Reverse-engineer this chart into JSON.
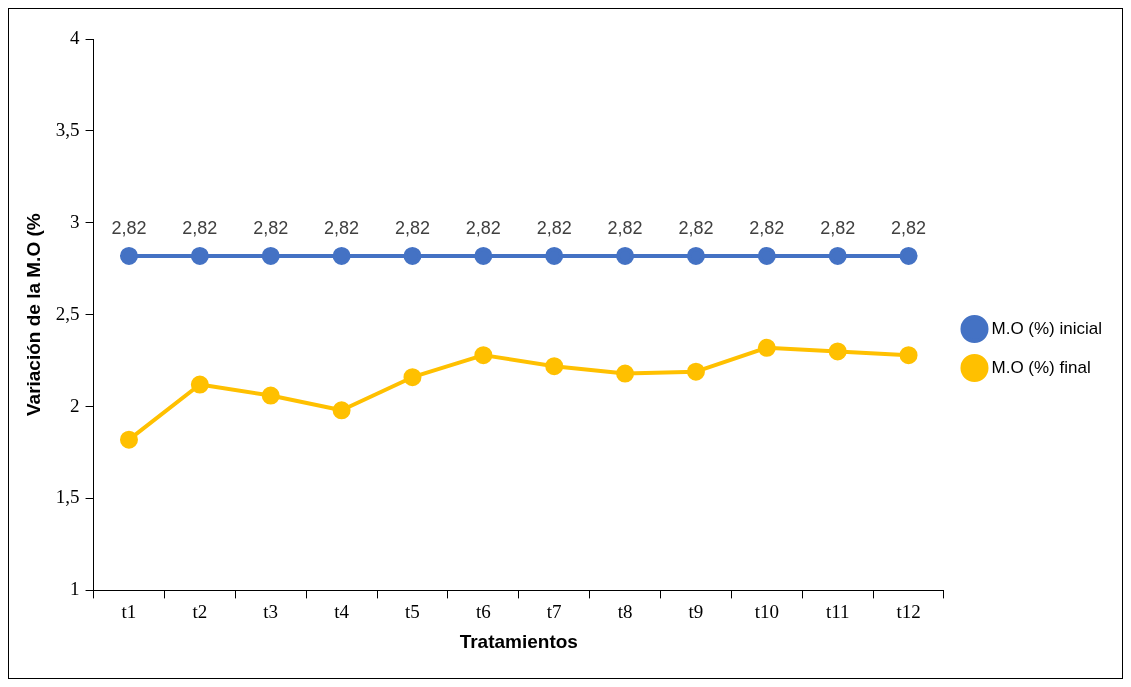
{
  "chart_data": {
    "type": "line",
    "xlabel": "Tratamientos",
    "ylabel": "Variación de la M.O (%",
    "categories": [
      "t1",
      "t2",
      "t3",
      "t4",
      "t5",
      "t6",
      "t7",
      "t8",
      "t9",
      "t10",
      "t11",
      "t12"
    ],
    "series": [
      {
        "name": "M.O (%) inicial",
        "color": "#4472c4",
        "values": [
          2.82,
          2.82,
          2.82,
          2.82,
          2.82,
          2.82,
          2.82,
          2.82,
          2.82,
          2.82,
          2.82,
          2.82
        ],
        "value_labels": [
          "2,82",
          "2,82",
          "2,82",
          "2,82",
          "2,82",
          "2,82",
          "2,82",
          "2,82",
          "2,82",
          "2,82",
          "2,82",
          "2,82"
        ]
      },
      {
        "name": "M.O (%) final",
        "color": "#ffc000",
        "values": [
          1.82,
          2.12,
          2.06,
          1.98,
          2.16,
          2.28,
          2.22,
          2.18,
          2.19,
          2.32,
          2.3,
          2.28
        ]
      }
    ],
    "ylim": [
      1,
      4
    ],
    "yticks": [
      1,
      {
        "value": 1.5,
        "label": "1,5"
      },
      2,
      {
        "value": 2.5,
        "label": "2,5"
      },
      3,
      {
        "value": 3.5,
        "label": "3,5"
      },
      4
    ],
    "grid": false,
    "legend": "right",
    "marker": "circle",
    "line_style": "solid"
  }
}
